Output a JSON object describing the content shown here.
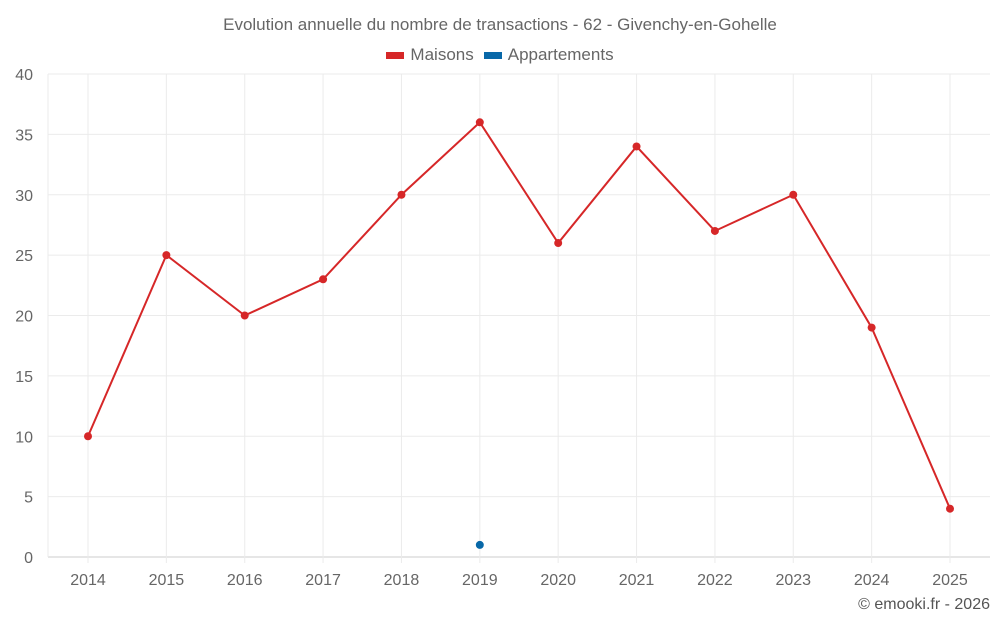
{
  "chart_data": {
    "type": "line",
    "title": "Evolution annuelle du nombre de transactions - 62 - Givenchy-en-Gohelle",
    "xlabel": "",
    "ylabel": "",
    "categories": [
      "2014",
      "2015",
      "2016",
      "2017",
      "2018",
      "2019",
      "2020",
      "2021",
      "2022",
      "2023",
      "2024",
      "2025"
    ],
    "ylim": [
      0,
      40
    ],
    "yticks": [
      0,
      5,
      10,
      15,
      20,
      25,
      30,
      35,
      40
    ],
    "grid": true,
    "legend_position": "top-center",
    "series": [
      {
        "name": "Maisons",
        "color": "#d62728",
        "values": [
          10,
          25,
          20,
          23,
          30,
          36,
          26,
          34,
          27,
          30,
          19,
          4
        ]
      },
      {
        "name": "Appartements",
        "color": "#0868a8",
        "values": [
          null,
          null,
          null,
          null,
          null,
          1,
          null,
          null,
          null,
          null,
          null,
          null
        ]
      }
    ]
  },
  "credit": "© emooki.fr - 2026"
}
